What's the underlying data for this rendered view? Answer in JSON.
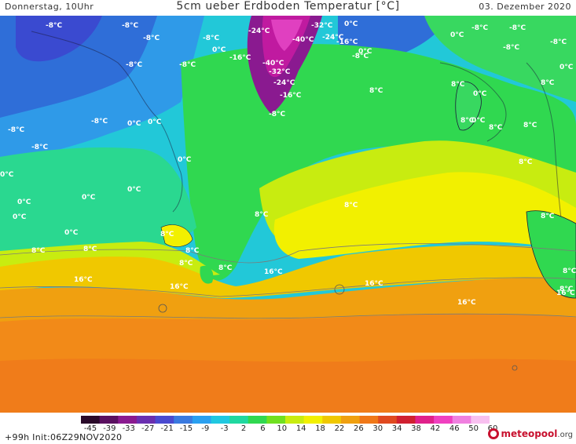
{
  "header": {
    "left": "Donnerstag, 10Uhr",
    "title": "5cm ueber Erdboden Temperatur [°C]",
    "right": "03. Dezember 2020"
  },
  "footer": {
    "init": "+99h  Init:06Z29NOV2020",
    "brand_main": "meteopool",
    "brand_org": ".org"
  },
  "scale": {
    "ticks": [
      "-45",
      "-39",
      "-33",
      "-27",
      "-21",
      "-15",
      "-9",
      "-3",
      "2",
      "6",
      "10",
      "14",
      "18",
      "22",
      "26",
      "30",
      "34",
      "38",
      "42",
      "46",
      "50",
      "60"
    ],
    "colors": [
      "#2a0a2a",
      "#5a1060",
      "#8a1a90",
      "#6a2fb0",
      "#4a4ad0",
      "#3a7ae0",
      "#2aa0f0",
      "#20c8e0",
      "#20d8a0",
      "#30d850",
      "#70e020",
      "#c8ec10",
      "#f2f000",
      "#f0c800",
      "#f0a010",
      "#f07818",
      "#e04a20",
      "#d02030",
      "#e0208a",
      "#f040c0",
      "#f080e0",
      "#f8c0f0"
    ]
  },
  "labels": [
    {
      "text": "-8°C",
      "tone": "light"
    },
    {
      "text": "-8°C",
      "tone": "light"
    },
    {
      "text": "-8°C",
      "tone": "light"
    },
    {
      "text": "-8°C",
      "tone": "light"
    },
    {
      "text": "-8°C",
      "tone": "light"
    },
    {
      "text": "-8°C",
      "tone": "light"
    },
    {
      "text": "-8°C",
      "tone": "light"
    },
    {
      "text": "-8°C",
      "tone": "light"
    },
    {
      "text": "-8°C",
      "tone": "light"
    },
    {
      "text": "-8°C",
      "tone": "light"
    },
    {
      "text": "-8°C",
      "tone": "light"
    },
    {
      "text": "-8°C",
      "tone": "light"
    },
    {
      "text": "-8°C",
      "tone": "light"
    },
    {
      "text": "-8°C",
      "tone": "light"
    },
    {
      "text": "-24°C",
      "tone": "light"
    },
    {
      "text": "-16°C",
      "tone": "light"
    },
    {
      "text": "-32°C",
      "tone": "light"
    },
    {
      "text": "-40°C",
      "tone": "light"
    },
    {
      "text": "-24°C",
      "tone": "light"
    },
    {
      "text": "-16°C",
      "tone": "light"
    },
    {
      "text": "-40°C",
      "tone": "light"
    },
    {
      "text": "-32°C",
      "tone": "light"
    },
    {
      "text": "-24°C",
      "tone": "light"
    },
    {
      "text": "-16°C",
      "tone": "light"
    },
    {
      "text": "-8°C",
      "tone": "light"
    },
    {
      "text": "0°C",
      "tone": "light"
    },
    {
      "text": "0°C",
      "tone": "light"
    },
    {
      "text": "0°C",
      "tone": "light"
    },
    {
      "text": "0°C",
      "tone": "light"
    },
    {
      "text": "0°C",
      "tone": "light"
    },
    {
      "text": "0°C",
      "tone": "light"
    },
    {
      "text": "0°C",
      "tone": "light"
    },
    {
      "text": "0°C",
      "tone": "light"
    },
    {
      "text": "0°C",
      "tone": "light"
    },
    {
      "text": "0°C",
      "tone": "light"
    },
    {
      "text": "0°C",
      "tone": "light"
    },
    {
      "text": "0°C",
      "tone": "light"
    },
    {
      "text": "0°C",
      "tone": "light"
    },
    {
      "text": "0°C",
      "tone": "light"
    },
    {
      "text": "0°C",
      "tone": "light"
    },
    {
      "text": "0°C",
      "tone": "light"
    },
    {
      "text": "8°C",
      "tone": "light"
    },
    {
      "text": "8°C",
      "tone": "light"
    },
    {
      "text": "8°C",
      "tone": "light"
    },
    {
      "text": "8°C",
      "tone": "light"
    },
    {
      "text": "8°C",
      "tone": "light"
    },
    {
      "text": "8°C",
      "tone": "light"
    },
    {
      "text": "8°C",
      "tone": "light"
    },
    {
      "text": "8°C",
      "tone": "light"
    },
    {
      "text": "8°C",
      "tone": "light"
    },
    {
      "text": "8°C",
      "tone": "light"
    },
    {
      "text": "8°C",
      "tone": "light"
    },
    {
      "text": "8°C",
      "tone": "light"
    },
    {
      "text": "8°C",
      "tone": "light"
    },
    {
      "text": "8°C",
      "tone": "light"
    },
    {
      "text": "8°C",
      "tone": "light"
    },
    {
      "text": "8°C",
      "tone": "light"
    },
    {
      "text": "8°C",
      "tone": "light"
    },
    {
      "text": "8°C",
      "tone": "light"
    },
    {
      "text": "16°C",
      "tone": "light"
    },
    {
      "text": "16°C",
      "tone": "light"
    },
    {
      "text": "16°C",
      "tone": "light"
    },
    {
      "text": "16°C",
      "tone": "light"
    },
    {
      "text": "16°C",
      "tone": "light"
    },
    {
      "text": "16°C",
      "tone": "light"
    }
  ]
}
